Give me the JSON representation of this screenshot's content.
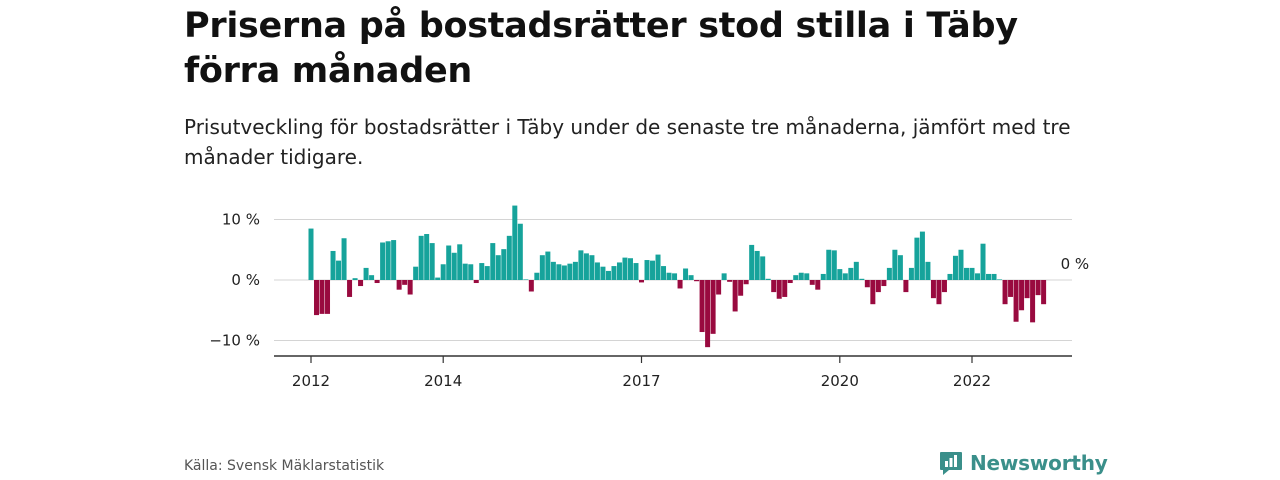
{
  "title": "Priserna på bostadsrätter stod stilla i Täby förra månaden",
  "subtitle": "Prisutveckling för bostadsrätter i Täby under de senaste tre månaderna, jämfört med tre månader tidigare.",
  "source": "Källa: Svensk Mäklarstatistik",
  "brand": "Newsworthy",
  "colors": {
    "positive": "#16a39b",
    "negative": "#990a3f",
    "brand": "#3a8f8a"
  },
  "chart_data": {
    "type": "bar",
    "ylim": [
      -13,
      13
    ],
    "grid": true,
    "legend": "none",
    "y_ticks": [
      {
        "value": 10,
        "label": "10 %"
      },
      {
        "value": 0,
        "label": "0 %"
      },
      {
        "value": -10,
        "label": "−10 %"
      }
    ],
    "x_ticks": [
      {
        "value": 2012,
        "label": "2012"
      },
      {
        "value": 2014,
        "label": "2014"
      },
      {
        "value": 2017,
        "label": "2017"
      },
      {
        "value": 2020,
        "label": "2020"
      },
      {
        "value": 2022,
        "label": "2022"
      }
    ],
    "x_start": "2012-01",
    "annotation": {
      "label": "0 %",
      "value": 0
    },
    "values": [
      8.5,
      -5.8,
      -5.6,
      -5.6,
      4.8,
      3.2,
      6.9,
      -2.8,
      0.3,
      -1.0,
      2.0,
      0.8,
      -0.5,
      6.2,
      6.4,
      6.6,
      -1.6,
      -0.8,
      -2.4,
      2.2,
      7.3,
      7.6,
      6.1,
      0.4,
      2.6,
      5.7,
      4.5,
      5.9,
      2.7,
      2.6,
      -0.5,
      2.8,
      2.3,
      6.1,
      4.1,
      5.1,
      7.3,
      12.3,
      9.3,
      0.1,
      -1.9,
      1.2,
      4.1,
      4.7,
      3.0,
      2.6,
      2.4,
      2.7,
      3.0,
      4.9,
      4.4,
      4.1,
      2.9,
      2.2,
      1.5,
      2.3,
      2.9,
      3.7,
      3.6,
      2.8,
      -0.4,
      3.3,
      3.2,
      4.2,
      2.3,
      1.2,
      1.1,
      -1.4,
      1.9,
      0.8,
      -0.2,
      -8.6,
      -11.1,
      -8.9,
      -2.4,
      1.1,
      -0.3,
      -5.2,
      -2.6,
      -0.7,
      5.8,
      4.8,
      3.9,
      0.2,
      -2.0,
      -3.1,
      -2.8,
      -0.5,
      0.8,
      1.2,
      1.1,
      -0.8,
      -1.6,
      1.0,
      5.0,
      4.9,
      1.8,
      1.1,
      2.0,
      3.0,
      0.2,
      -1.2,
      -4.0,
      -2.0,
      -1.0,
      2.0,
      5.0,
      4.1,
      -2.0,
      2.0,
      7.0,
      8.0,
      3.0,
      -3.0,
      -4.0,
      -2.0,
      1.0,
      4.0,
      5.0,
      2.0,
      2.0,
      1.1,
      6.0,
      1.0,
      1.0,
      0.1,
      -4.0,
      -2.8,
      -6.9,
      -5.0,
      -3.0,
      -7.0,
      -2.5,
      -4.0
    ]
  }
}
